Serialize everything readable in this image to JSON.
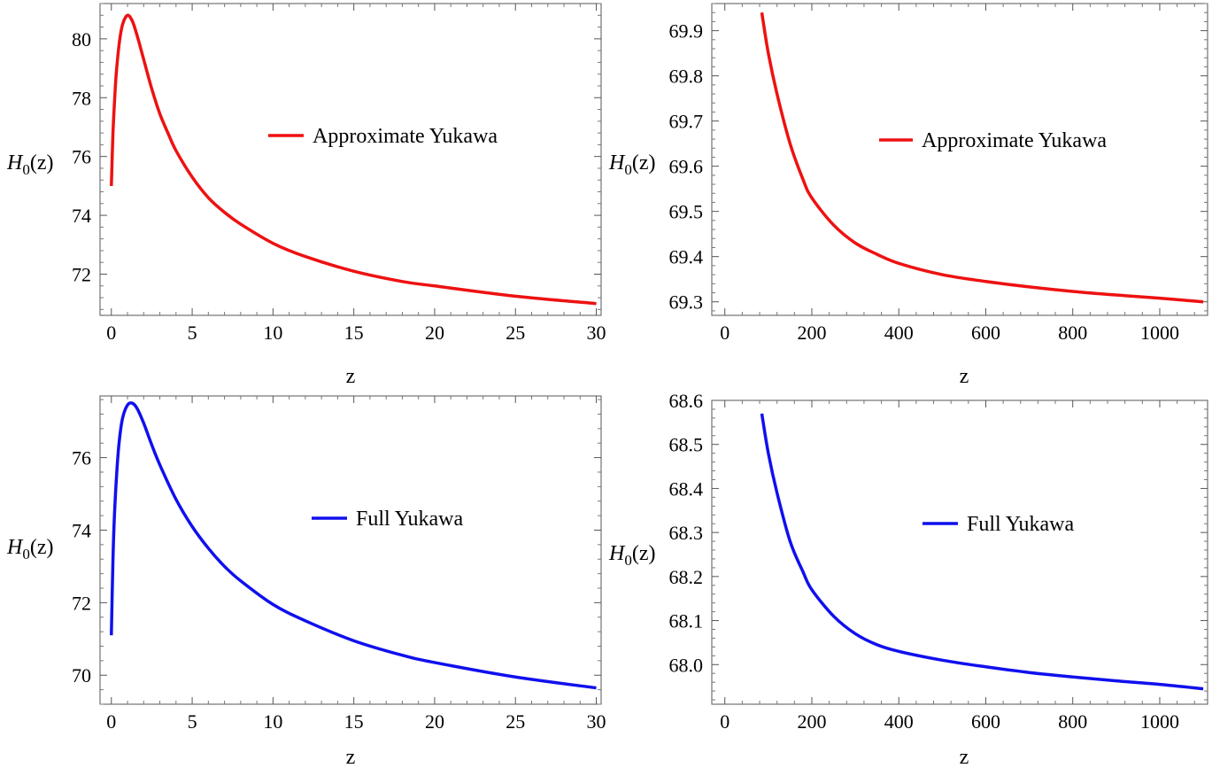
{
  "chart_data": [
    {
      "type": "line",
      "xlabel": "z",
      "ylabel_main": "H",
      "ylabel_sub": "0",
      "ylabel_rest": "(z)",
      "xlim": [
        -0.7,
        30.3
      ],
      "ylim": [
        70.6,
        81.2
      ],
      "xticks": [
        0,
        5,
        10,
        15,
        20,
        25,
        30
      ],
      "yticks": [
        72,
        74,
        76,
        78,
        80
      ],
      "ytick_decimals": 0,
      "legend_placement": "center-right",
      "series": [
        {
          "name": "Approximate Yukawa",
          "color": "#ee1111",
          "x": [
            0,
            0.1,
            0.2,
            0.3,
            0.5,
            0.7,
            1.0,
            1.3,
            1.6,
            2.0,
            2.5,
            3.0,
            3.5,
            4.0,
            5.0,
            6.0,
            7.0,
            8.0,
            10.0,
            12.0,
            15.0,
            18.0,
            20.0,
            25.0,
            30.0
          ],
          "y": [
            75.0,
            76.8,
            77.9,
            78.8,
            79.9,
            80.5,
            80.8,
            80.6,
            80.1,
            79.3,
            78.3,
            77.45,
            76.8,
            76.2,
            75.3,
            74.6,
            74.1,
            73.7,
            73.05,
            72.6,
            72.1,
            71.75,
            71.6,
            71.25,
            71.0
          ]
        }
      ]
    },
    {
      "type": "line",
      "xlabel": "z",
      "ylabel_main": "H",
      "ylabel_sub": "0",
      "ylabel_rest": "(z)",
      "xlim": [
        -30,
        1110
      ],
      "ylim": [
        69.27,
        69.96
      ],
      "xticks": [
        0,
        200,
        400,
        600,
        800,
        1000
      ],
      "yticks": [
        69.3,
        69.4,
        69.5,
        69.6,
        69.7,
        69.8,
        69.9
      ],
      "ytick_decimals": 1,
      "legend_placement": "center-right",
      "series": [
        {
          "name": "Approximate Yukawa",
          "color": "#ee1111",
          "x": [
            85,
            100,
            120,
            150,
            180,
            200,
            250,
            300,
            350,
            400,
            500,
            600,
            700,
            800,
            900,
            1000,
            1100
          ],
          "y": [
            69.94,
            69.85,
            69.76,
            69.65,
            69.57,
            69.53,
            69.47,
            69.43,
            69.405,
            69.385,
            69.36,
            69.345,
            69.333,
            69.323,
            69.315,
            69.308,
            69.3
          ]
        }
      ]
    },
    {
      "type": "line",
      "xlabel": "z",
      "ylabel_main": "H",
      "ylabel_sub": "0",
      "ylabel_rest": "(z)",
      "xlim": [
        -0.7,
        30.3
      ],
      "ylim": [
        69.2,
        77.7
      ],
      "xticks": [
        0,
        5,
        10,
        15,
        20,
        25,
        30
      ],
      "yticks": [
        70,
        72,
        74,
        76
      ],
      "ytick_decimals": 0,
      "legend_placement": "center-right",
      "series": [
        {
          "name": "Full Yukawa",
          "color": "#1010ee",
          "x": [
            0,
            0.1,
            0.2,
            0.35,
            0.5,
            0.7,
            1.0,
            1.3,
            1.6,
            2.0,
            2.5,
            3.0,
            4.0,
            5.0,
            6.0,
            7.0,
            8.0,
            10.0,
            12.0,
            15.0,
            18.0,
            20.0,
            25.0,
            30.0
          ],
          "y": [
            71.1,
            73.2,
            74.5,
            75.7,
            76.5,
            77.1,
            77.45,
            77.5,
            77.35,
            76.95,
            76.35,
            75.8,
            74.85,
            74.1,
            73.5,
            73.0,
            72.6,
            71.95,
            71.5,
            70.95,
            70.55,
            70.35,
            69.95,
            69.65
          ]
        }
      ]
    },
    {
      "type": "line",
      "xlabel": "z",
      "ylabel_main": "H",
      "ylabel_sub": "0",
      "ylabel_rest": "(z)",
      "xlim": [
        -30,
        1110
      ],
      "ylim": [
        67.91,
        68.6
      ],
      "xticks": [
        0,
        200,
        400,
        600,
        800,
        1000
      ],
      "yticks": [
        68.0,
        68.1,
        68.2,
        68.3,
        68.4,
        68.5,
        68.6
      ],
      "ytick_decimals": 1,
      "legend_placement": "center-right",
      "series": [
        {
          "name": "Full Yukawa",
          "color": "#1010ee",
          "x": [
            85,
            100,
            120,
            150,
            180,
            200,
            250,
            300,
            350,
            400,
            500,
            600,
            700,
            800,
            900,
            1000,
            1100
          ],
          "y": [
            68.57,
            68.48,
            68.39,
            68.28,
            68.21,
            68.17,
            68.11,
            68.07,
            68.045,
            68.03,
            68.01,
            67.995,
            67.982,
            67.972,
            67.963,
            67.955,
            67.945
          ]
        }
      ]
    }
  ]
}
